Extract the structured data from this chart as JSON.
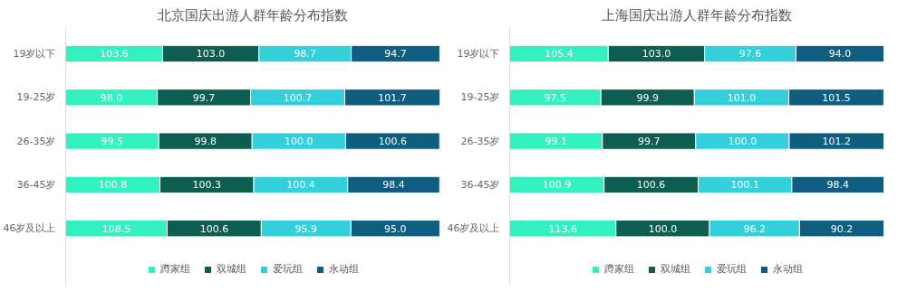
{
  "chart_data": [
    {
      "type": "bar",
      "orientation": "horizontal",
      "stacked": true,
      "legend": "bottom",
      "grid": false,
      "title": "北京国庆出游人群年龄分布指数",
      "categories": [
        "19岁以下",
        "19-25岁",
        "26-35岁",
        "36-45岁",
        "46岁及以上"
      ],
      "series": [
        {
          "name": "蹲家组",
          "color": "#33f0c0",
          "values": [
            103.6,
            98.0,
            99.5,
            100.8,
            108.5
          ],
          "value_labels": [
            "103.6",
            "98.0",
            "99.5",
            "100.8",
            "108.5"
          ]
        },
        {
          "name": "双城组",
          "color": "#0d5e50",
          "values": [
            103.0,
            99.7,
            99.8,
            100.3,
            100.6
          ],
          "value_labels": [
            "103.0",
            "99.7",
            "99.8",
            "100.3",
            "100.6"
          ]
        },
        {
          "name": "爱玩组",
          "color": "#33d0dc",
          "values": [
            98.7,
            100.7,
            100.0,
            100.4,
            95.9
          ],
          "value_labels": [
            "98.7",
            "100.7",
            "100.0",
            "100.4",
            "95.9"
          ]
        },
        {
          "name": "永动组",
          "color": "#0f5e80",
          "values": [
            94.7,
            101.7,
            100.6,
            98.4,
            95.0
          ],
          "value_labels": [
            "94.7",
            "101.7",
            "100.6",
            "98.4",
            "95.0"
          ]
        }
      ]
    },
    {
      "type": "bar",
      "orientation": "horizontal",
      "stacked": true,
      "legend": "bottom",
      "grid": false,
      "title": "上海国庆出游人群年龄分布指数",
      "categories": [
        "19岁以下",
        "19-25岁",
        "26-35岁",
        "36-45岁",
        "46岁及以上"
      ],
      "series": [
        {
          "name": "蹲家组",
          "color": "#33f0c0",
          "values": [
            105.4,
            97.5,
            99.1,
            100.9,
            113.6
          ],
          "value_labels": [
            "105.4",
            "97.5",
            "99.1",
            "100.9",
            "113.6"
          ]
        },
        {
          "name": "双城组",
          "color": "#0d5e50",
          "values": [
            103.0,
            99.9,
            99.7,
            100.6,
            100.0
          ],
          "value_labels": [
            "103.0",
            "99.9",
            "99.7",
            "100.6",
            "100.0"
          ]
        },
        {
          "name": "爱玩组",
          "color": "#33d0dc",
          "values": [
            97.6,
            101.0,
            100.0,
            100.1,
            96.2
          ],
          "value_labels": [
            "97.6",
            "101.0",
            "100.0",
            "100.1",
            "96.2"
          ]
        },
        {
          "name": "永动组",
          "color": "#0f5e80",
          "values": [
            94.0,
            101.5,
            101.2,
            98.4,
            90.2
          ],
          "value_labels": [
            "94.0",
            "101.5",
            "101.2",
            "98.4",
            "90.2"
          ]
        }
      ]
    }
  ]
}
